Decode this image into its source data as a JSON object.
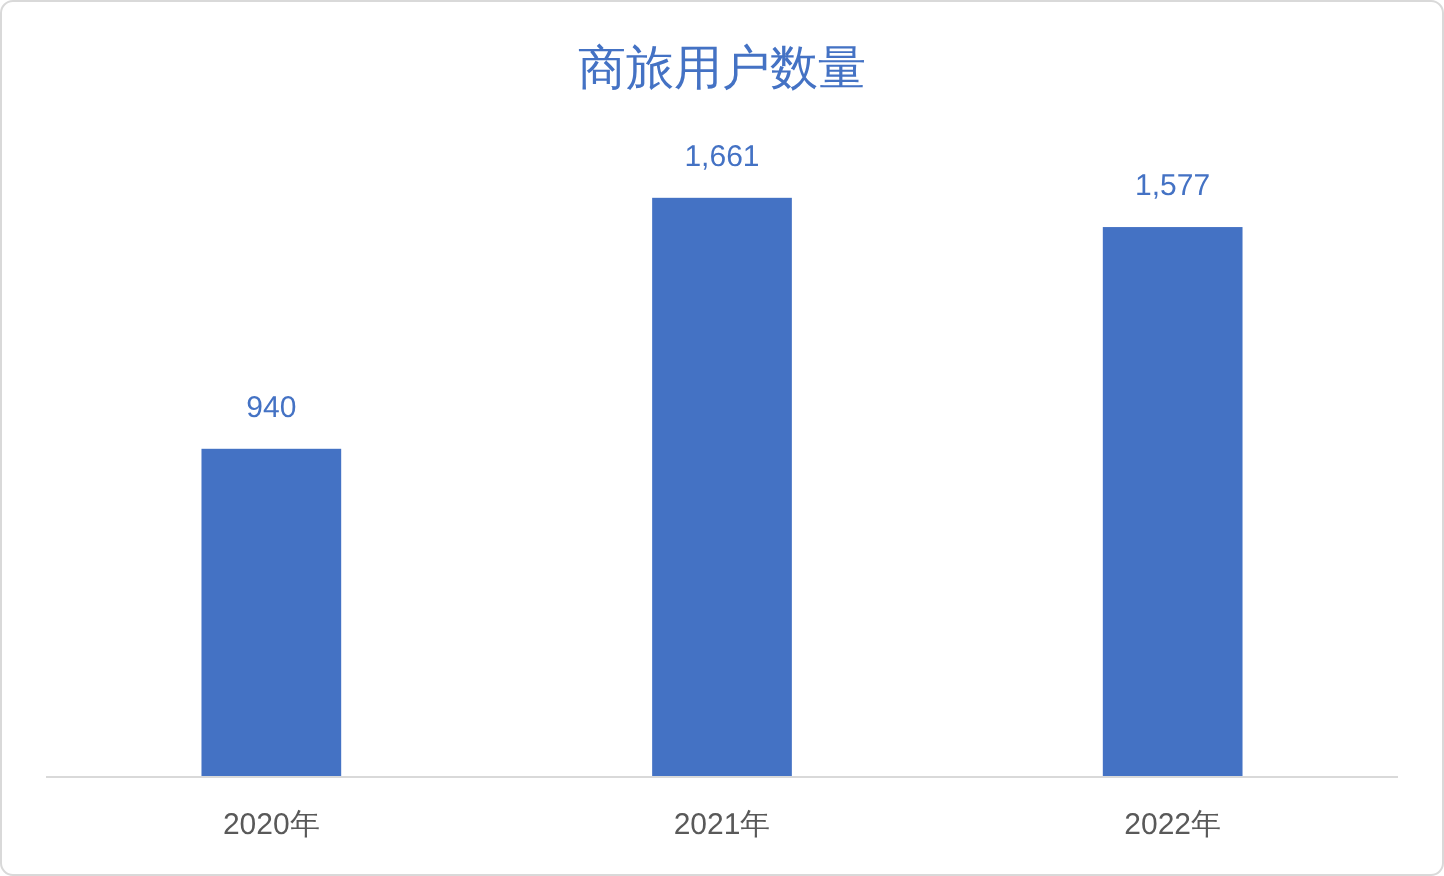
{
  "chart_data": {
    "type": "bar",
    "title": "商旅用户数量",
    "categories": [
      "2020年",
      "2021年",
      "2022年"
    ],
    "values": [
      940,
      1661,
      1577
    ],
    "value_labels": [
      "940",
      "1,661",
      "1,577"
    ],
    "color": "#4472c4"
  }
}
